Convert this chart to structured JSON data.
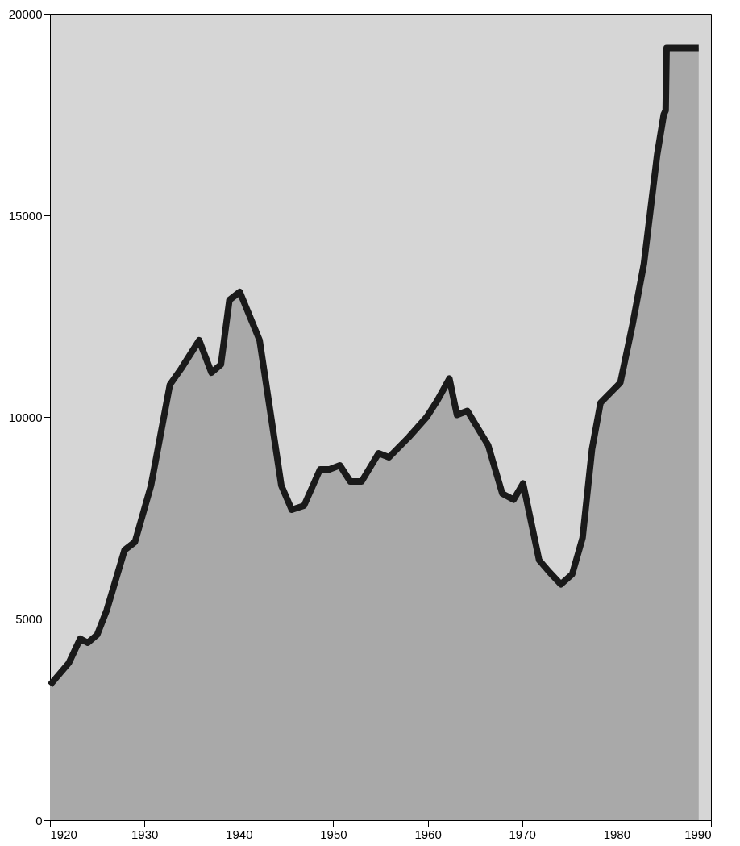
{
  "chart_data": {
    "type": "area",
    "xlim": [
      1920,
      1990
    ],
    "ylim": [
      0,
      20000
    ],
    "xticks": [
      1920,
      1930,
      1940,
      1950,
      1960,
      1970,
      1980,
      1990
    ],
    "yticks": [
      0,
      5000,
      10000,
      15000,
      20000
    ],
    "grid": false,
    "series": [
      {
        "color": "#a9a9a9",
        "x": [
          1920.0,
          1922.0,
          1923.2,
          1924.0,
          1925.0,
          1926.0,
          1927.9,
          1929.0,
          1930.7,
          1932.7,
          1933.9,
          1935.8,
          1937.1,
          1938.1,
          1939.0,
          1940.1,
          1942.2,
          1944.5,
          1945.6,
          1946.9,
          1948.6,
          1949.6,
          1950.7,
          1951.8,
          1953.0,
          1954.8,
          1955.9,
          1958.0,
          1959.9,
          1961.0,
          1962.3,
          1963.1,
          1964.2,
          1966.4,
          1967.9,
          1969.1,
          1970.1,
          1971.8,
          1972.9,
          1974.1,
          1975.3,
          1976.4,
          1977.4,
          1978.3,
          1980.4,
          1981.7,
          1982.9,
          1984.3,
          1985.0,
          1985.2,
          1985.3,
          1988.7
        ],
        "values": [
          3350,
          3900,
          4500,
          4400,
          4600,
          5200,
          6700,
          6900,
          8300,
          10800,
          11200,
          11900,
          11100,
          11300,
          12900,
          13100,
          11900,
          8300,
          7700,
          7800,
          8700,
          8700,
          8800,
          8400,
          8400,
          9100,
          9000,
          9500,
          10000,
          10400,
          10950,
          10050,
          10150,
          9300,
          8100,
          7950,
          8350,
          6450,
          6150,
          5850,
          6100,
          7000,
          9200,
          10350,
          10850,
          12300,
          13800,
          16500,
          17500,
          17600,
          19150,
          19150
        ]
      }
    ]
  }
}
